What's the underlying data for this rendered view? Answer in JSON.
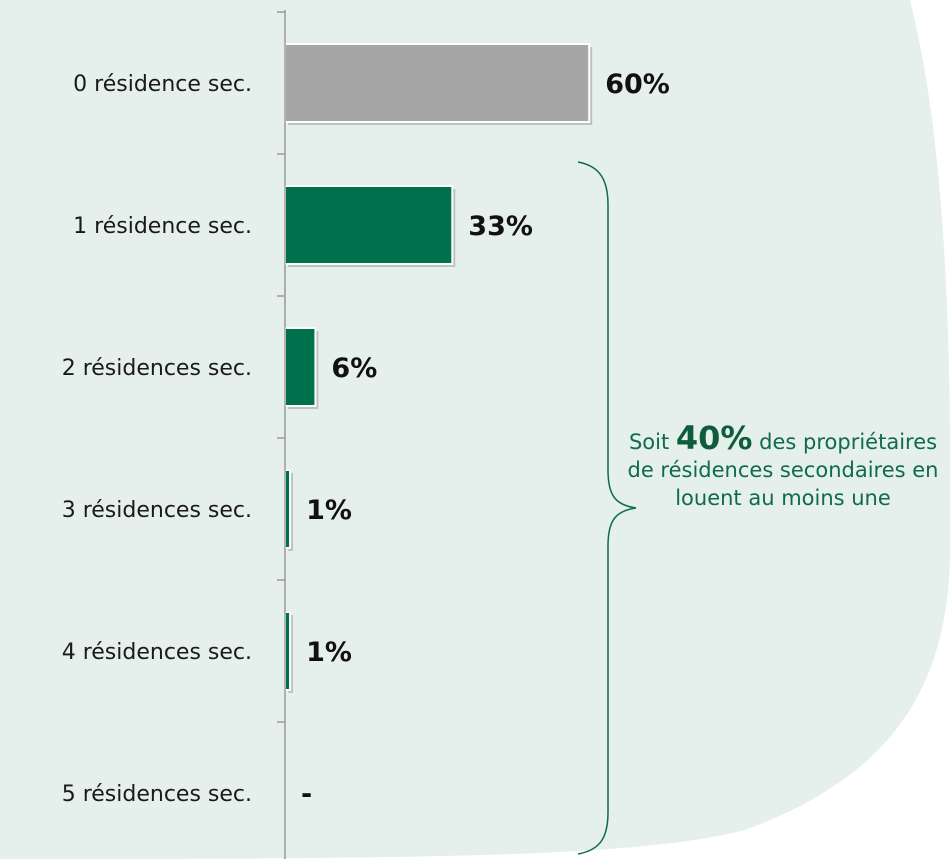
{
  "colors": {
    "background_panel": "#e5efeb",
    "highlight_bar": "#a6a6a6",
    "series_bar": "#00714d",
    "annotation_text": "#0f6b48"
  },
  "chart_data": {
    "type": "bar",
    "orientation": "horizontal",
    "title": "",
    "xlabel": "",
    "ylabel": "",
    "xlim": [
      0,
      100
    ],
    "grid": false,
    "legend": "none",
    "categories": [
      "0 résidence sec.",
      "1 résidence sec.",
      "2 résidences sec.",
      "3 résidences sec.",
      "4 résidences sec.",
      "5 résidences sec."
    ],
    "values": [
      60,
      33,
      6,
      1,
      1,
      0
    ],
    "value_labels": [
      "60%",
      "33%",
      "6%",
      "1%",
      "1%",
      "-"
    ],
    "bar_colors": [
      "#a6a6a6",
      "#00714d",
      "#00714d",
      "#00714d",
      "#00714d",
      "#00714d"
    ],
    "annotation": {
      "prefix": "Soit",
      "highlight": "40%",
      "suffix": "des propriétaires de résidences secondaires en louent au moins une",
      "brace_spans_categories": [
        1,
        5
      ]
    }
  }
}
